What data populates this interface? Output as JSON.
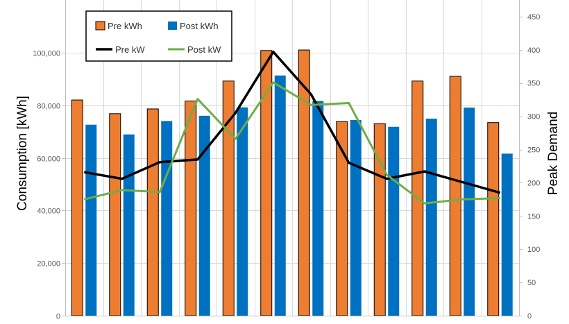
{
  "chart_data": {
    "type": "bar",
    "xlabel": "",
    "ylabel": "Consumption [kWh]",
    "y2label": "Peak Demand",
    "ylim": [
      0,
      120000
    ],
    "y2lim": [
      0,
      475
    ],
    "y_ticks": [
      0,
      20000,
      40000,
      60000,
      80000,
      100000
    ],
    "y_tick_labels": [
      "0",
      "20,000",
      "40,000",
      "60,000",
      "80,000",
      "100,000"
    ],
    "y2_ticks": [
      0,
      50,
      100,
      150,
      200,
      250,
      300,
      350,
      400,
      450
    ],
    "y2_tick_labels": [
      "0",
      "50",
      "100",
      "150",
      "200",
      "250",
      "300",
      "350",
      "400",
      "450"
    ],
    "categories": [
      "",
      "",
      "",
      "",
      "",
      "",
      "",
      "",
      "",
      "",
      "",
      ""
    ],
    "grid": "y-major",
    "legend_position": "top-left",
    "series": [
      {
        "name": "Pre kWh",
        "type": "bar",
        "axis": "left",
        "color": "#ED7D31",
        "values": [
          82000,
          76800,
          78600,
          81600,
          89200,
          100800,
          101000,
          73800,
          73000,
          89200,
          91000,
          73400
        ]
      },
      {
        "name": "Post kWh",
        "type": "bar",
        "axis": "left",
        "color": "#0070C0",
        "values": [
          72600,
          68900,
          74000,
          76000,
          79200,
          91300,
          81600,
          74400,
          71800,
          74900,
          79100,
          61600
        ]
      },
      {
        "name": "Pre kW",
        "type": "line",
        "axis": "right",
        "color": "#000000",
        "values": [
          216,
          206,
          231,
          235,
          305,
          397,
          333,
          230,
          206,
          217,
          201,
          185
        ]
      },
      {
        "name": "Post kW",
        "type": "line",
        "axis": "right",
        "color": "#70AD47",
        "values": [
          175,
          189,
          186,
          326,
          266,
          351,
          317,
          320,
          212,
          169,
          175,
          177
        ]
      }
    ]
  }
}
